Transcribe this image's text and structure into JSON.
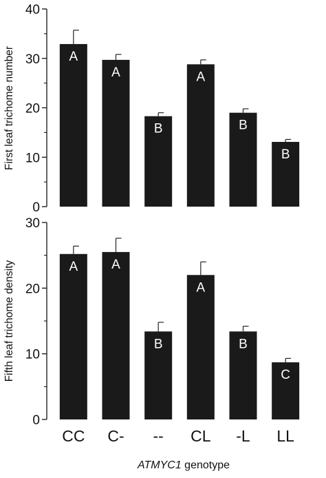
{
  "chart_data": [
    {
      "type": "bar",
      "categories": [
        "CC",
        "C-",
        "--",
        "CL",
        "-L",
        "LL"
      ],
      "values": [
        32.9,
        29.7,
        18.3,
        28.8,
        19.0,
        13.1
      ],
      "errors": [
        2.8,
        1.1,
        0.7,
        0.9,
        0.8,
        0.5
      ],
      "group_letters": [
        "A",
        "A",
        "B",
        "A",
        "B",
        "B"
      ],
      "ylabel": "First leaf trichome number",
      "xlabel": "",
      "ylim": [
        0,
        40
      ],
      "yticks": [
        0,
        10,
        20,
        30,
        40
      ],
      "bar_color": "#1a1a1a",
      "grid": false
    },
    {
      "type": "bar",
      "categories": [
        "CC",
        "C-",
        "--",
        "CL",
        "-L",
        "LL"
      ],
      "values": [
        25.2,
        25.5,
        13.4,
        22.0,
        13.4,
        8.7
      ],
      "errors": [
        1.2,
        2.1,
        1.4,
        2.0,
        0.8,
        0.6
      ],
      "group_letters": [
        "A",
        "A",
        "B",
        "A",
        "B",
        "C"
      ],
      "ylabel": "Fifth leaf trichome density",
      "xlabel": "",
      "ylim": [
        0,
        30
      ],
      "yticks": [
        0,
        10,
        20,
        30
      ],
      "bar_color": "#1a1a1a",
      "grid": false
    }
  ],
  "shared_xlabel": {
    "italic_part": "ATMYC1",
    "rest": " genotype"
  }
}
